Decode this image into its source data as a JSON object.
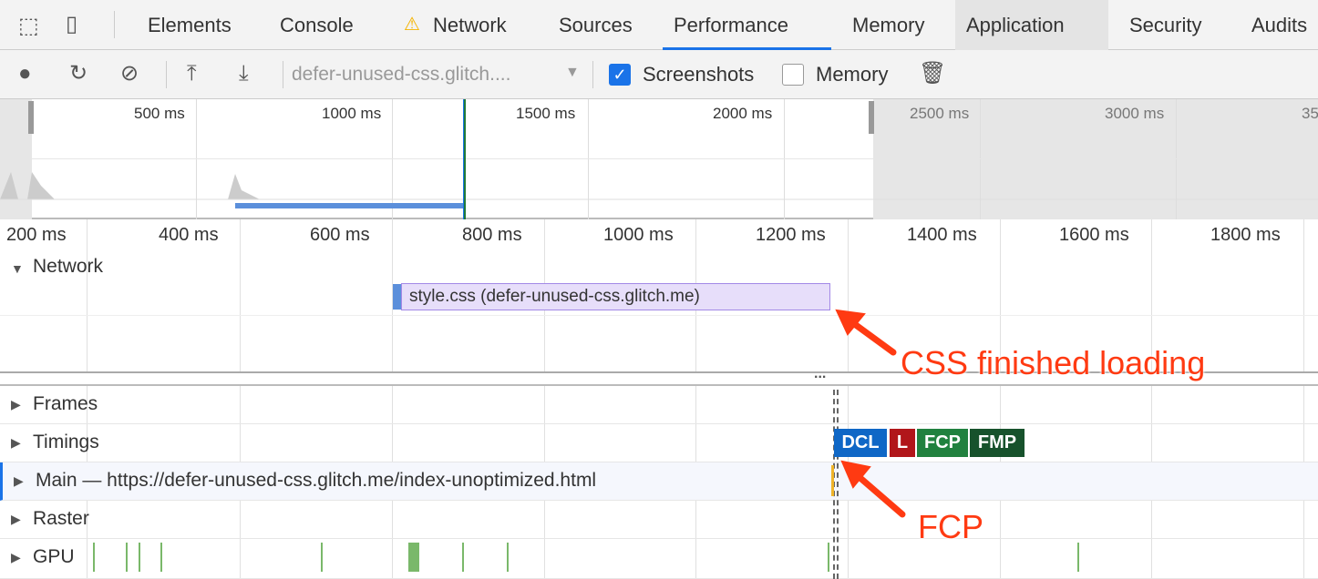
{
  "tabs": [
    "Elements",
    "Console",
    "Network",
    "Sources",
    "Performance",
    "Memory",
    "Application",
    "Security",
    "Audits"
  ],
  "active_tab": "Performance",
  "toolbar": {
    "url": "defer-unused-css.glitch....",
    "screenshots_label": "Screenshots",
    "screenshots_checked": true,
    "memory_label": "Memory",
    "memory_checked": false
  },
  "overview_ticks": [
    "500 ms",
    "1000 ms",
    "1500 ms",
    "2000 ms",
    "2500 ms",
    "3000 ms",
    "35"
  ],
  "ruler_ticks": [
    "200 ms",
    "400 ms",
    "600 ms",
    "800 ms",
    "1000 ms",
    "1200 ms",
    "1400 ms",
    "1600 ms",
    "1800 ms"
  ],
  "network": {
    "label": "Network",
    "request": "style.css (defer-unused-css.glitch.me)"
  },
  "tracks": {
    "frames": "Frames",
    "timings": "Timings",
    "main": "Main — https://defer-unused-css.glitch.me/index-unoptimized.html",
    "raster": "Raster",
    "gpu": "GPU"
  },
  "timing_badges": [
    {
      "label": "DCL",
      "color": "#0f67c6"
    },
    {
      "label": "L",
      "color": "#b1161a"
    },
    {
      "label": "FCP",
      "color": "#21813f"
    },
    {
      "label": "FMP",
      "color": "#17522c"
    }
  ],
  "annotations": {
    "css": "CSS finished loading",
    "fcp": "FCP"
  },
  "resizer": "..."
}
